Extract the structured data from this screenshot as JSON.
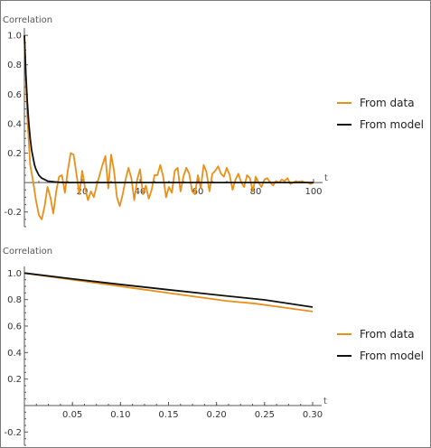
{
  "chart_data": [
    {
      "type": "line",
      "ylabel": "Correlation",
      "xlabel": "t",
      "xlim": [
        0,
        100
      ],
      "ylim": [
        -0.3,
        1.05
      ],
      "x_ticks": [
        20,
        40,
        60,
        80,
        100
      ],
      "x_tick_labels": [
        "20",
        "40",
        "60",
        "80",
        "100"
      ],
      "y_ticks": [
        -0.2,
        0.2,
        0.4,
        0.6,
        0.8,
        1.0
      ],
      "y_tick_labels": [
        "-0.2",
        "0.2",
        "0.4",
        "0.6",
        "0.8",
        "1.0"
      ],
      "legend_position": "right",
      "series": [
        {
          "name": "From data",
          "color": "#E8901A",
          "x": [
            0,
            1,
            2,
            3,
            4,
            5,
            6,
            7,
            8,
            9,
            10,
            11,
            12,
            13,
            14,
            15,
            16,
            17,
            18,
            19,
            20,
            21,
            22,
            23,
            24,
            25,
            26,
            27,
            28,
            29,
            30,
            31,
            32,
            33,
            34,
            35,
            36,
            37,
            38,
            39,
            40,
            41,
            42,
            43,
            44,
            45,
            46,
            47,
            48,
            49,
            50,
            51,
            52,
            53,
            54,
            55,
            56,
            57,
            58,
            59,
            60,
            61,
            62,
            63,
            64,
            65,
            66,
            67,
            68,
            69,
            70,
            71,
            72,
            73,
            74,
            75,
            76,
            77,
            78,
            79,
            80,
            81,
            82,
            83,
            84,
            85,
            86,
            87,
            88,
            89,
            90,
            91,
            92,
            93,
            94,
            95,
            96,
            97,
            98,
            99,
            100
          ],
          "y": [
            1.0,
            0.45,
            0.12,
            0.01,
            -0.12,
            -0.22,
            -0.25,
            -0.16,
            -0.03,
            -0.1,
            -0.21,
            -0.06,
            0.04,
            0.05,
            -0.07,
            0.08,
            0.2,
            0.19,
            0.06,
            -0.08,
            0.08,
            -0.04,
            -0.12,
            -0.06,
            -0.1,
            -0.02,
            0.05,
            0.12,
            0.18,
            -0.04,
            0.19,
            0.08,
            -0.1,
            -0.16,
            -0.08,
            0.02,
            0.1,
            0.03,
            -0.12,
            0.02,
            0.09,
            -0.08,
            -0.02,
            -0.11,
            -0.05,
            0.05,
            0.05,
            0.12,
            0.04,
            -0.1,
            -0.03,
            -0.07,
            0.08,
            0.1,
            -0.06,
            0.04,
            0.1,
            0.06,
            -0.06,
            -0.08,
            0.05,
            -0.04,
            0.12,
            0.07,
            -0.06,
            0.06,
            0.08,
            0.11,
            0.06,
            0.04,
            0.1,
            0.05,
            -0.05,
            0.02,
            0.06,
            0.0,
            -0.03,
            0.05,
            0.03,
            -0.06,
            0.04,
            0.0,
            -0.03,
            0.02,
            0.03,
            0.0,
            -0.02,
            0.01,
            0.0,
            0.02,
            0.01,
            0.03,
            -0.01,
            0.0,
            0.01,
            0.0,
            0.01,
            0.0,
            0.0,
            -0.01,
            0.0
          ]
        },
        {
          "name": "From model",
          "color": "#111111",
          "x": [
            0,
            0.5,
            1,
            1.5,
            2,
            2.5,
            3,
            3.5,
            4,
            5,
            6,
            7,
            8,
            10,
            12,
            15,
            20,
            30,
            40,
            50,
            60,
            70,
            80,
            90,
            100
          ],
          "y": [
            1.0,
            0.74,
            0.55,
            0.41,
            0.3,
            0.22,
            0.17,
            0.12,
            0.09,
            0.05,
            0.03,
            0.02,
            0.01,
            0.005,
            0.002,
            0.0,
            0.0,
            0.0,
            0.0,
            0.0,
            0.0,
            0.0,
            0.0,
            0.0,
            0.0
          ]
        }
      ]
    },
    {
      "type": "line",
      "ylabel": "Correlation",
      "xlabel": "t",
      "xlim": [
        0,
        0.3
      ],
      "ylim": [
        -0.3,
        1.05
      ],
      "x_ticks": [
        0.05,
        0.1,
        0.15,
        0.2,
        0.25,
        0.3
      ],
      "x_tick_labels": [
        "0.05",
        "0.10",
        "0.15",
        "0.20",
        "0.25",
        "0.30"
      ],
      "y_ticks": [
        -0.2,
        0.2,
        0.4,
        0.6,
        0.8,
        1.0
      ],
      "y_tick_labels": [
        "-0.2",
        "0.2",
        "0.4",
        "0.6",
        "0.8",
        "1.0"
      ],
      "legend_position": "right",
      "series": [
        {
          "name": "From data",
          "color": "#E8901A",
          "x": [
            0.0,
            0.03,
            0.06,
            0.09,
            0.12,
            0.15,
            0.18,
            0.21,
            0.24,
            0.27,
            0.3
          ],
          "y": [
            1.0,
            0.97,
            0.94,
            0.91,
            0.88,
            0.85,
            0.82,
            0.79,
            0.77,
            0.74,
            0.71
          ]
        },
        {
          "name": "From model",
          "color": "#111111",
          "x": [
            0.0,
            0.05,
            0.1,
            0.15,
            0.2,
            0.25,
            0.3
          ],
          "y": [
            1.0,
            0.956,
            0.914,
            0.874,
            0.835,
            0.798,
            0.743
          ]
        }
      ]
    }
  ]
}
